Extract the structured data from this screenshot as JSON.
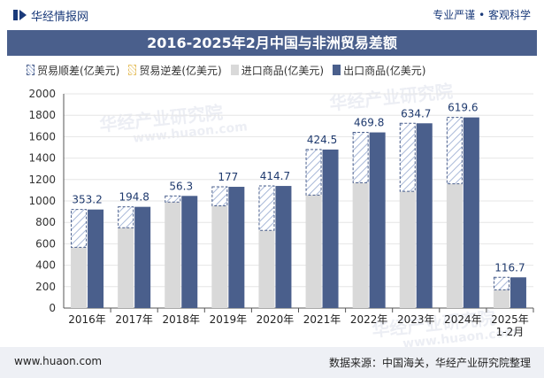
{
  "header": {
    "brand_name": "华经情报网",
    "slogan": "专业严谨 • 客观科学"
  },
  "colors": {
    "title_bg": "#4a5f8c",
    "export": "#4a5f8c",
    "import": "#d9d9d9",
    "surplus_line": "#4a5f8c",
    "label": "#1f3a6e",
    "footer_bg": "#eef0f5"
  },
  "watermark": {
    "brand": "华经产业研究院",
    "url": "www.huaon.com"
  },
  "footer": {
    "url": "www.huaon.com",
    "source": "数据来源：中国海关，华经产业研究院整理"
  },
  "chart_data": {
    "type": "bar",
    "title": "2016-2025年2月中国与非洲贸易差额",
    "legend": [
      "贸易顺差(亿美元)",
      "贸易逆差(亿美元)",
      "进口商品(亿美元)",
      "出口商品(亿美元)"
    ],
    "categories": [
      "2016年",
      "2017年",
      "2018年",
      "2019年",
      "2020年",
      "2021年",
      "2022年",
      "2023年",
      "2024年",
      "2025年\n1-2月"
    ],
    "series": [
      {
        "name": "进口商品(亿美元)",
        "values": [
          567,
          750,
          990,
          955,
          725,
          1055,
          1170,
          1090,
          1160,
          170
        ]
      },
      {
        "name": "出口商品(亿美元)",
        "values": [
          920,
          945,
          1047,
          1132,
          1140,
          1480,
          1640,
          1725,
          1780,
          287
        ]
      },
      {
        "name": "贸易顺差(亿美元)",
        "values": [
          353.2,
          194.8,
          56.3,
          177,
          414.7,
          424.5,
          469.8,
          634.7,
          619.6,
          116.7
        ]
      }
    ],
    "ylim": [
      0,
      2000
    ],
    "yticks": [
      0,
      200,
      400,
      600,
      800,
      1000,
      1200,
      1400,
      1600,
      1800,
      2000
    ],
    "xlabel": "",
    "ylabel": ""
  }
}
